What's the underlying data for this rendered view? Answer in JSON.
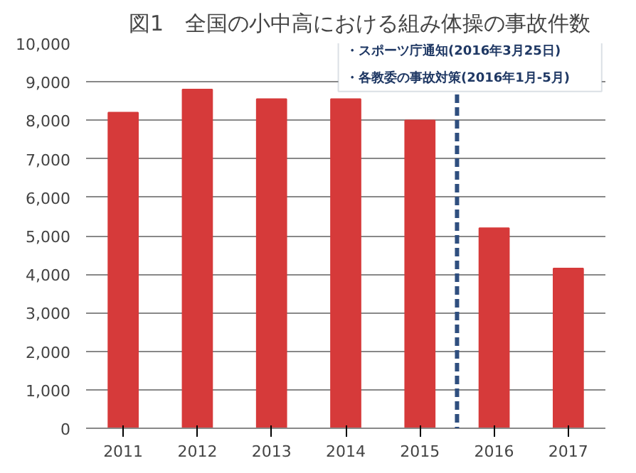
{
  "chart_data": {
    "type": "bar",
    "title": "図1　全国の小中高における組み体操の事故件数",
    "x": [
      2011,
      2012,
      2013,
      2014,
      2015,
      2016,
      2017
    ],
    "values": [
      8200,
      8800,
      8550,
      8550,
      8000,
      5200,
      4150
    ],
    "color": "#d63a3a",
    "xlim": [
      2010.5,
      2017.5
    ],
    "xticks": [
      2011,
      2012,
      2013,
      2014,
      2015,
      2016,
      2017
    ],
    "ylim": [
      0,
      10000
    ],
    "yticks": [
      {
        "value": 0,
        "label": "0"
      },
      {
        "value": 1000,
        "label": "1,000"
      },
      {
        "value": 2000,
        "label": "2,000"
      },
      {
        "value": 3000,
        "label": "3,000"
      },
      {
        "value": 4000,
        "label": "4,000"
      },
      {
        "value": 5000,
        "label": "5,000"
      },
      {
        "value": 6000,
        "label": "6,000"
      },
      {
        "value": 7000,
        "label": "7,000"
      },
      {
        "value": 8000,
        "label": "8,000"
      },
      {
        "value": 9000,
        "label": "9,000"
      },
      {
        "value": 10000,
        "label": "10,000"
      }
    ],
    "grid": "y",
    "ref_lines": [
      {
        "axis": "x",
        "value": 2015.5,
        "color": "#2f4f7f",
        "line_style": "dashed"
      }
    ],
    "annotations": [
      "・スポーツ庁通知(2016年3月25日)",
      "・各教委の事故対策(2016年1月-5月)"
    ]
  }
}
